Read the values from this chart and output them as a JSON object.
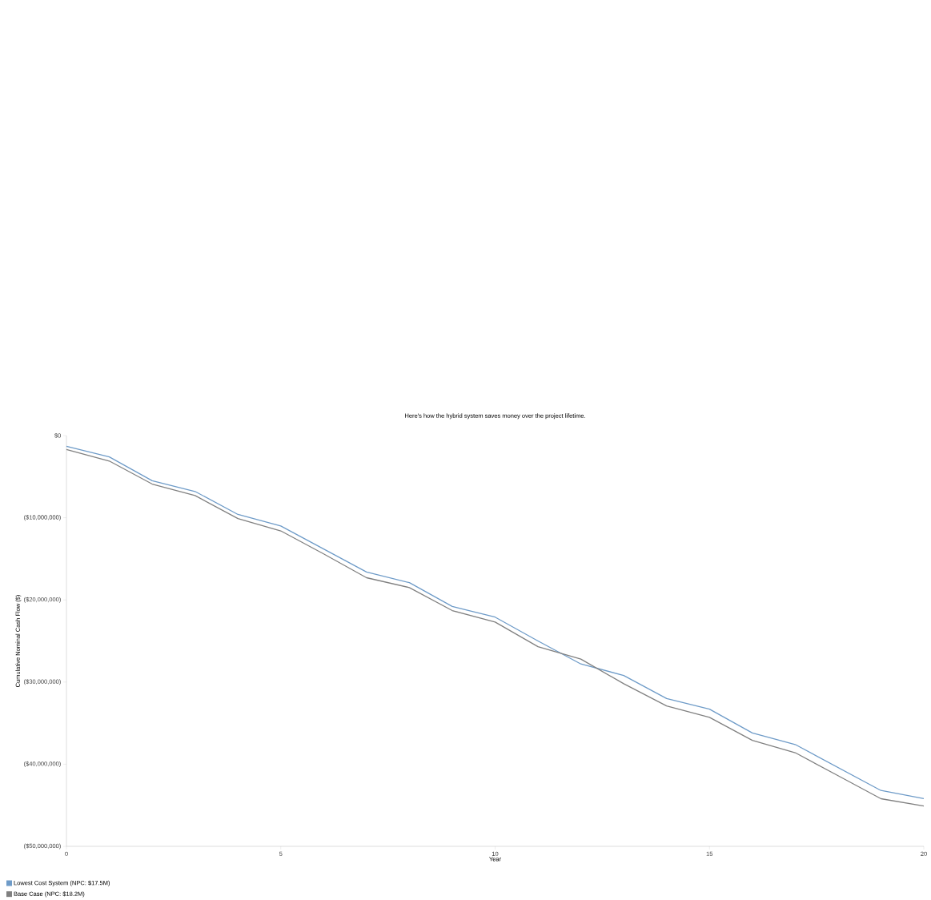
{
  "chart_data": {
    "type": "line",
    "title": "Here's how the hybrid system saves money over the project lifetime.",
    "xlabel": "Year",
    "ylabel": "Cumulative Nominal Cash Flow ($)",
    "x": [
      0,
      1,
      2,
      3,
      4,
      5,
      6,
      7,
      8,
      9,
      10,
      11,
      12,
      13,
      14,
      15,
      16,
      17,
      18,
      19,
      20
    ],
    "series": [
      {
        "name": "Lowest Cost System (NPC: $17.5M)",
        "color": "#6e9bc8",
        "values": [
          -1300000,
          -2600000,
          -5500000,
          -6800000,
          -9600000,
          -11000000,
          -13800000,
          -16600000,
          -17900000,
          -20800000,
          -22100000,
          -25000000,
          -27800000,
          -29200000,
          -32000000,
          -33300000,
          -36200000,
          -37600000,
          -40400000,
          -43200000,
          -44200000
        ]
      },
      {
        "name": "Base Case (NPC: $18.2M)",
        "color": "#808080",
        "values": [
          -1700000,
          -3100000,
          -5900000,
          -7300000,
          -10100000,
          -11600000,
          -14400000,
          -17300000,
          -18500000,
          -21300000,
          -22700000,
          -25700000,
          -27200000,
          -30200000,
          -32900000,
          -34300000,
          -37100000,
          -38600000,
          -41400000,
          -44200000,
          -45100000
        ]
      }
    ],
    "xlim": [
      0,
      20
    ],
    "xticks": [
      0,
      5,
      10,
      15,
      20
    ],
    "ylim": [
      -50000000,
      0
    ],
    "yticks": [
      {
        "value": -50000000,
        "label": "($50,000,000)"
      },
      {
        "value": -40000000,
        "label": "($40,000,000)"
      },
      {
        "value": -30000000,
        "label": "($30,000,000)"
      },
      {
        "value": -20000000,
        "label": "($20,000,000)"
      },
      {
        "value": -10000000,
        "label": "($10,000,000)"
      },
      {
        "value": 0,
        "label": "$0"
      }
    ],
    "legend": "bottom left",
    "grid": false,
    "marker": "none",
    "line_style": "solid"
  }
}
